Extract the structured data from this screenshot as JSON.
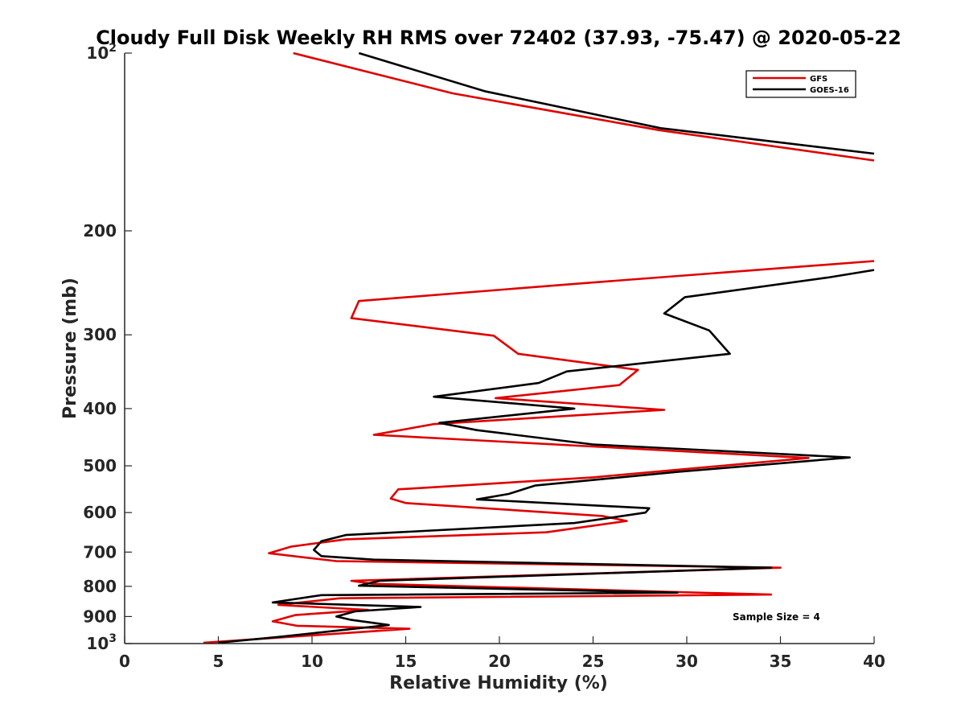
{
  "chart_data": {
    "type": "line",
    "title": "Cloudy Full Disk Weekly RH RMS over 72402 (37.93, -75.47) @ 2020-05-22",
    "xlabel": "Relative Humidity (%)",
    "ylabel": "Pressure (mb)",
    "xlim": [
      0,
      40
    ],
    "ylim": [
      100,
      1000
    ],
    "yscale": "log",
    "y_reversed": true,
    "x_ticks": [
      "0",
      "5",
      "10",
      "15",
      "20",
      "25",
      "30",
      "35",
      "40"
    ],
    "y_ticks": [
      {
        "value": 100,
        "base": "10",
        "exp": "2"
      },
      {
        "value": 200,
        "base": "200",
        "exp": ""
      },
      {
        "value": 300,
        "base": "300",
        "exp": ""
      },
      {
        "value": 400,
        "base": "400",
        "exp": ""
      },
      {
        "value": 500,
        "base": "500",
        "exp": ""
      },
      {
        "value": 600,
        "base": "600",
        "exp": ""
      },
      {
        "value": 700,
        "base": "700",
        "exp": ""
      },
      {
        "value": 800,
        "base": "800",
        "exp": ""
      },
      {
        "value": 900,
        "base": "900",
        "exp": ""
      },
      {
        "value": 1000,
        "base": "10",
        "exp": "3"
      }
    ],
    "legend_position": "top-right",
    "annotation": "Sample Size = 4",
    "series": [
      {
        "name": "GFS",
        "color": "#e00000",
        "segments": [
          [
            [
              9.0,
              100
            ],
            [
              17.5,
              117
            ],
            [
              28.5,
              135
            ],
            [
              40.0,
              152
            ]
          ],
          [
            [
              40.0,
              225
            ],
            [
              24.0,
              246
            ],
            [
              12.5,
              263
            ],
            [
              12.1,
              281
            ],
            [
              19.7,
              301
            ],
            [
              21.0,
              323
            ],
            [
              27.4,
              344
            ],
            [
              26.4,
              365
            ],
            [
              19.8,
              384
            ],
            [
              28.8,
              402
            ],
            [
              16.5,
              425
            ],
            [
              13.3,
              443
            ],
            [
              36.5,
              485
            ],
            [
              25.0,
              523
            ],
            [
              14.6,
              548
            ],
            [
              14.2,
              568
            ],
            [
              15.0,
              578
            ],
            [
              25.5,
              608
            ],
            [
              26.8,
              620
            ],
            [
              22.5,
              648
            ],
            [
              11.8,
              666
            ],
            [
              8.9,
              685
            ],
            [
              7.7,
              703
            ],
            [
              11.3,
              725
            ],
            [
              35.0,
              744
            ],
            [
              12.1,
              783
            ],
            [
              13.2,
              792
            ],
            [
              34.5,
              826
            ],
            [
              11.5,
              838
            ],
            [
              8.2,
              860
            ],
            [
              13.0,
              877
            ],
            [
              9.1,
              895
            ],
            [
              7.9,
              917
            ],
            [
              9.2,
              933
            ],
            [
              15.2,
              944
            ],
            [
              4.2,
              997
            ]
          ]
        ]
      },
      {
        "name": "GOES-16",
        "color": "#000000",
        "segments": [
          [
            [
              12.5,
              100
            ],
            [
              19.2,
              116
            ],
            [
              28.6,
              134
            ],
            [
              40.0,
              148
            ]
          ],
          [
            [
              40.0,
              233
            ],
            [
              37.5,
              240
            ],
            [
              29.9,
              259
            ],
            [
              28.8,
              276
            ],
            [
              31.2,
              295
            ],
            [
              32.3,
              323
            ],
            [
              23.6,
              346
            ],
            [
              22.1,
              362
            ],
            [
              16.5,
              382
            ],
            [
              24.0,
              400
            ],
            [
              16.8,
              423
            ],
            [
              18.8,
              435
            ],
            [
              25.0,
              460
            ],
            [
              38.7,
              484
            ],
            [
              29.5,
              512
            ],
            [
              21.9,
              540
            ],
            [
              20.5,
              558
            ],
            [
              18.8,
              570
            ],
            [
              28.0,
              590
            ],
            [
              27.8,
              600
            ],
            [
              24.0,
              625
            ],
            [
              11.8,
              655
            ],
            [
              10.5,
              671
            ],
            [
              10.1,
              694
            ],
            [
              10.5,
              711
            ],
            [
              13.3,
              721
            ],
            [
              34.5,
              744
            ],
            [
              13.6,
              783
            ],
            [
              12.5,
              798
            ],
            [
              29.5,
              820
            ],
            [
              10.5,
              828
            ],
            [
              7.9,
              852
            ],
            [
              15.8,
              867
            ],
            [
              12.3,
              882
            ],
            [
              11.3,
              900
            ],
            [
              12.1,
              912
            ],
            [
              14.1,
              930
            ],
            [
              8.3,
              974
            ],
            [
              5.0,
              997
            ]
          ]
        ]
      }
    ]
  }
}
